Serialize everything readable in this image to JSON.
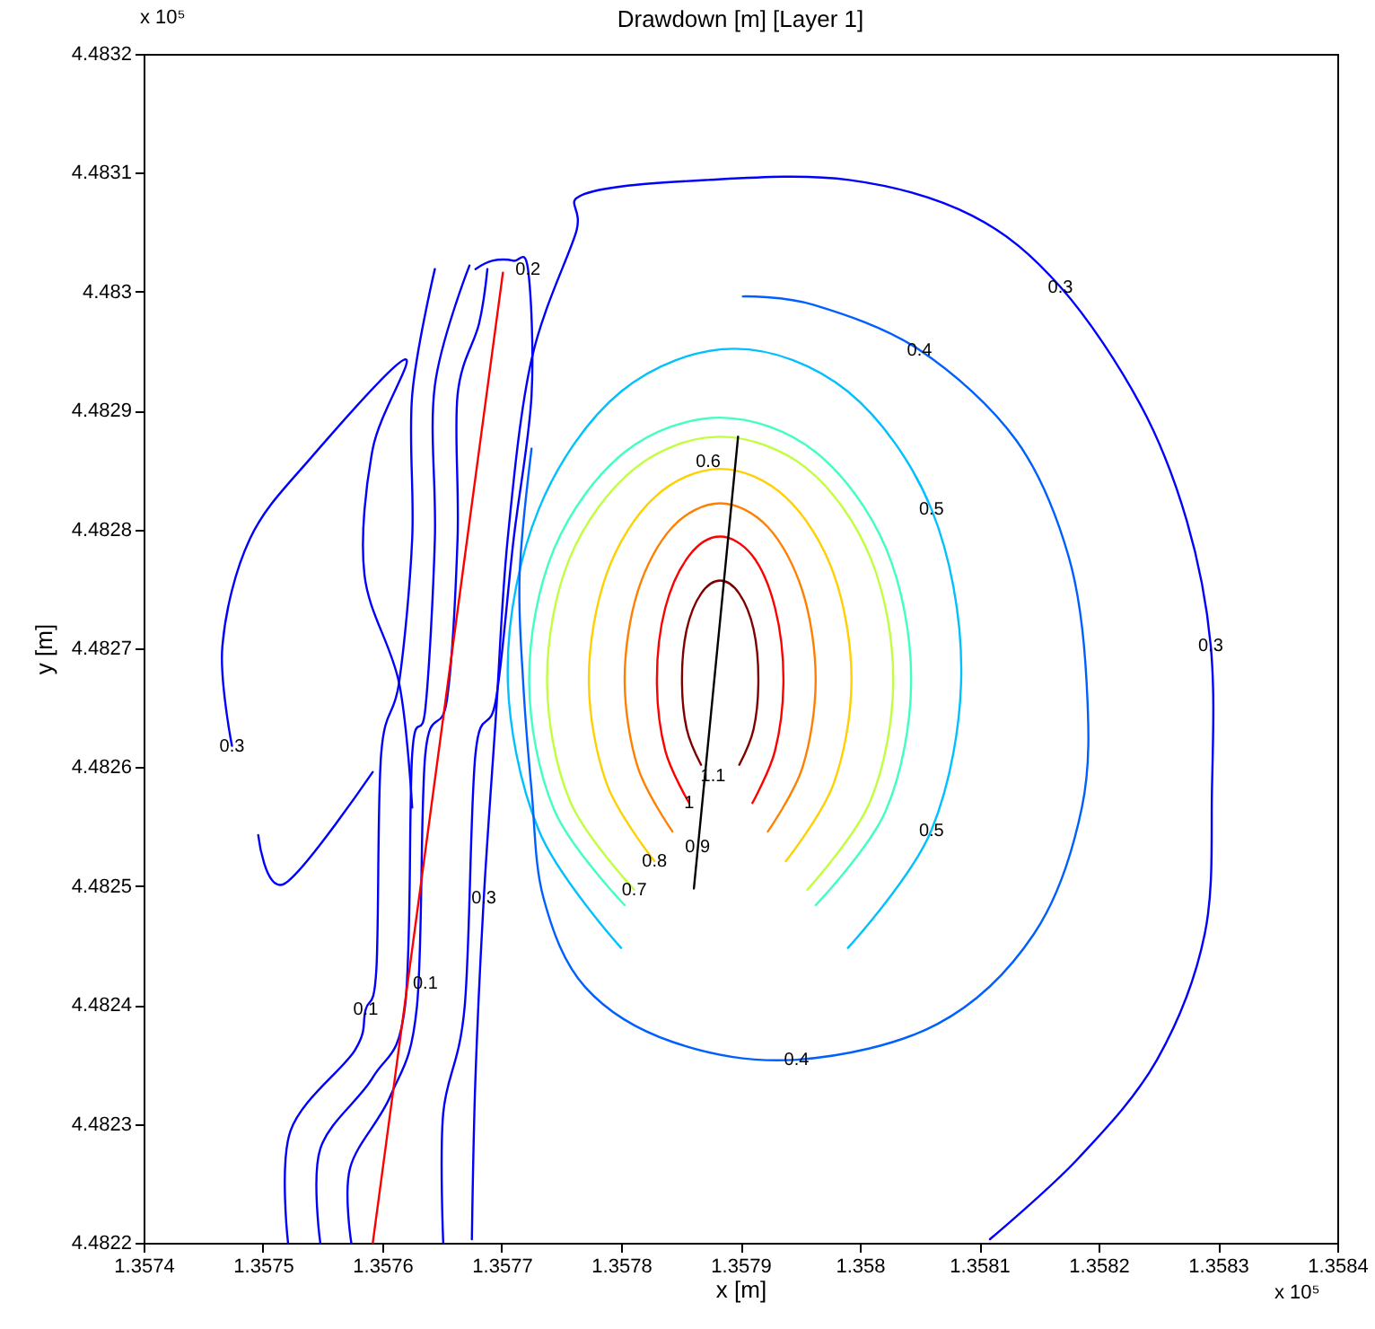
{
  "chart_data": {
    "type": "line",
    "title": "Drawdown [m] [Layer 1]",
    "xlabel": "x [m]",
    "ylabel": "y [m]",
    "xlim": [
      1.3574,
      1.3584
    ],
    "ylim": [
      4.4822,
      4.4832
    ],
    "xticks": [
      1.3574,
      1.3575,
      1.3576,
      1.3577,
      1.3578,
      1.3579,
      1.358,
      1.3581,
      1.3582,
      1.3583,
      1.3584
    ],
    "yticks": [
      4.4822,
      4.4823,
      4.4824,
      4.4825,
      4.4826,
      4.4827,
      4.4828,
      4.4829,
      4.483,
      4.4831,
      4.4832
    ],
    "grid": false,
    "legend": false,
    "series": [
      {
        "color": "#800000",
        "x": [
          1.357867,
          1.357855,
          1.357851,
          1.357855,
          1.357867,
          1.357883,
          1.357899,
          1.357911,
          1.357915,
          1.357911,
          1.357899
        ],
        "values": [
          4.482602,
          4.482632,
          4.482674,
          4.482716,
          4.482746,
          4.482757,
          4.482746,
          4.482716,
          4.482674,
          4.482632,
          4.482602
        ]
      },
      {
        "color": "#ff0000",
        "x": [
          1.357857,
          1.357837,
          1.35783,
          1.357837,
          1.357857,
          1.357883,
          1.35791,
          1.357929,
          1.357936,
          1.357929,
          1.35791
        ],
        "values": [
          4.48257,
          4.482614,
          4.482674,
          4.482734,
          4.482778,
          4.482794,
          4.482778,
          4.482734,
          4.482674,
          4.482614,
          4.48257
        ]
      },
      {
        "color": "#ff8000",
        "x": [
          1.357843,
          1.357814,
          1.357803,
          1.357814,
          1.357843,
          1.357883,
          1.357923,
          1.357952,
          1.357963,
          1.357952,
          1.357923
        ],
        "values": [
          4.482546,
          4.4826,
          4.482674,
          4.482748,
          4.482802,
          4.482822,
          4.482802,
          4.482748,
          4.482674,
          4.4826,
          4.482546
        ]
      },
      {
        "color": "#ffd000",
        "x": [
          1.357828,
          1.357788,
          1.357773,
          1.357788,
          1.357828,
          1.357883,
          1.357938,
          1.357978,
          1.357993,
          1.357978,
          1.357938
        ],
        "values": [
          4.482521,
          4.482586,
          4.482674,
          4.482763,
          4.482827,
          4.482851,
          4.482827,
          4.482763,
          4.482674,
          4.482586,
          4.482521
        ]
      },
      {
        "color": "#c0ff40",
        "x": [
          1.357811,
          1.357757,
          1.357738,
          1.357757,
          1.357811,
          1.357883,
          1.357956,
          1.358009,
          1.358028,
          1.358009,
          1.357956
        ],
        "values": [
          4.482497,
          4.482572,
          4.482674,
          4.482776,
          4.482851,
          4.482878,
          4.482851,
          4.482776,
          4.482674,
          4.482572,
          4.482497
        ]
      },
      {
        "color": "#40ffc0",
        "x": [
          1.357803,
          1.357744,
          1.357723,
          1.357744,
          1.357803,
          1.357883,
          1.357963,
          1.358022,
          1.358043,
          1.358022,
          1.357963
        ],
        "values": [
          4.482484,
          4.482564,
          4.482674,
          4.482784,
          4.482865,
          4.482894,
          4.482865,
          4.482784,
          4.482674,
          4.482564,
          4.482484
        ]
      },
      {
        "color": "#00c0ff",
        "x": [
          1.3578,
          1.357731,
          1.357705,
          1.357731,
          1.3578,
          1.357895,
          1.35799,
          1.35806,
          1.358085,
          1.35806,
          1.35799
        ],
        "values": [
          4.482448,
          4.482547,
          4.482682,
          4.482817,
          4.482916,
          4.482952,
          4.482916,
          4.482817,
          4.482682,
          4.482547,
          4.482448
        ]
      },
      {
        "color": "#0060ff",
        "x": [
          1.357725,
          1.357715,
          1.357718,
          1.357725,
          1.357735,
          1.35777,
          1.357843,
          1.357947,
          1.358065,
          1.358146,
          1.358186,
          1.35819,
          1.358175,
          1.358131,
          1.35805,
          1.357961,
          1.357902
        ],
        "values": [
          4.482868,
          4.482762,
          4.482671,
          4.482581,
          4.48249,
          4.482415,
          4.482369,
          4.482354,
          4.482384,
          4.48246,
          4.482566,
          4.482671,
          4.482777,
          4.482875,
          4.482951,
          4.482989,
          4.482996
        ]
      },
      {
        "color": "#0000ff",
        "x": [
          1.357675,
          1.357678,
          1.357685,
          1.357695,
          1.357705,
          1.357725,
          1.357762,
          1.357769,
          1.357873,
          1.357991,
          1.358094,
          1.358168,
          1.358235,
          1.358274,
          1.358294,
          1.358295,
          1.358289,
          1.358249,
          1.358183,
          1.358109
        ],
        "values": [
          4.482203,
          4.482339,
          4.48249,
          4.482641,
          4.482792,
          4.482943,
          4.483049,
          4.483082,
          4.483094,
          4.483094,
          4.483064,
          4.483004,
          4.482905,
          4.482807,
          4.482702,
          4.482581,
          4.48246,
          4.482354,
          4.482271,
          4.482203
        ]
      },
      {
        "color": "#0000ff",
        "x": [
          1.357474,
          1.357466,
          1.357489,
          1.35754,
          1.357619,
          1.357592,
          1.357585,
          1.357614,
          1.357625
        ],
        "values": [
          4.482618,
          4.482702,
          4.482792,
          4.48286,
          4.482943,
          4.482868,
          4.482762,
          4.482671,
          4.482566
        ]
      },
      {
        "color": "#0000ff",
        "x": [
          1.357496,
          1.357518,
          1.357592
        ],
        "values": [
          4.482543,
          4.482502,
          4.482596
        ]
      },
      {
        "color": "#0000ff",
        "x": [
          1.357521,
          1.357523,
          1.357577,
          1.357586,
          1.357595,
          1.357599,
          1.357614,
          1.357625,
          1.357625,
          1.357644
        ],
        "values": [
          4.4822,
          4.482294,
          4.482362,
          4.482396,
          4.48243,
          4.482611,
          4.482671,
          4.482792,
          4.482913,
          4.483019
        ]
      },
      {
        "color": "#0000ff",
        "x": [
          1.357548,
          1.357548,
          1.357592,
          1.357619,
          1.357625,
          1.357636,
          1.357644,
          1.357644,
          1.357673
        ],
        "values": [
          4.4822,
          4.482279,
          4.482339,
          4.482399,
          4.482611,
          4.482649,
          4.482792,
          4.482921,
          4.483022
        ]
      },
      {
        "color": "#0000ff",
        "x": [
          1.357574,
          1.357573,
          1.357607,
          1.357629,
          1.357636,
          1.357654,
          1.357663,
          1.357663,
          1.357681,
          1.357688
        ],
        "values": [
          4.4822,
          4.482263,
          4.482324,
          4.482399,
          4.482611,
          4.482656,
          4.482792,
          4.482913,
          4.482973,
          4.483019
        ]
      },
      {
        "color": "#0000ff",
        "x": [
          1.357651,
          1.357651,
          1.357669,
          1.357678,
          1.357695,
          1.35771,
          1.357725,
          1.357722,
          1.35771,
          1.357692,
          1.357678
        ],
        "values": [
          4.4822,
          4.482309,
          4.482399,
          4.482611,
          4.482656,
          4.482792,
          4.482913,
          4.483019,
          4.483026,
          4.483026,
          4.483019
        ]
      },
      {
        "color": "#ff0000",
        "x": [
          1.357592,
          1.357701
        ],
        "values": [
          4.4822,
          4.483016
        ]
      },
      {
        "color": "#000000",
        "x": [
          1.357861,
          1.357898
        ],
        "values": [
          4.482498,
          4.482878
        ]
      }
    ],
    "annotations": [
      "x 10⁵",
      "x 10⁵",
      {
        "text": "0.2",
        "x": 1.357722,
        "y": 4.483019
      },
      {
        "text": "0.6",
        "x": 1.357873,
        "y": 4.482857
      },
      {
        "text": "0.4",
        "x": 1.35805,
        "y": 4.482951
      },
      {
        "text": "0.5",
        "x": 1.35806,
        "y": 4.482817
      },
      {
        "text": "0.3",
        "x": 1.358168,
        "y": 4.483004
      },
      {
        "text": "0.3",
        "x": 1.358294,
        "y": 4.482702
      },
      {
        "text": "0.3",
        "x": 1.357474,
        "y": 4.482618
      },
      {
        "text": "1.1",
        "x": 1.357877,
        "y": 4.482593
      },
      {
        "text": "1",
        "x": 1.357857,
        "y": 4.48257
      },
      {
        "text": "0.9",
        "x": 1.357864,
        "y": 4.482533
      },
      {
        "text": "0.8",
        "x": 1.357828,
        "y": 4.482521
      },
      {
        "text": "0.7",
        "x": 1.357811,
        "y": 4.482497
      },
      {
        "text": "0.5",
        "x": 1.35806,
        "y": 4.482547
      },
      {
        "text": "0.3",
        "x": 1.357685,
        "y": 4.48249
      },
      {
        "text": "0.1",
        "x": 1.357636,
        "y": 4.482418
      },
      {
        "text": "0.1",
        "x": 1.357586,
        "y": 4.482396
      },
      {
        "text": "0.4",
        "x": 1.357947,
        "y": 4.482354
      }
    ]
  }
}
